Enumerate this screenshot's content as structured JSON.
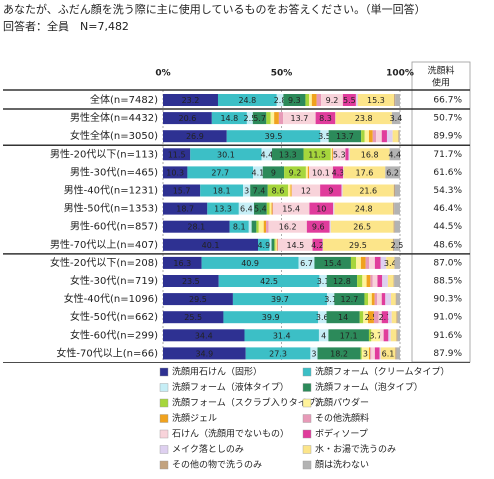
{
  "chart_data": {
    "type": "stacked_bar_horizontal",
    "title": "あなたが、ふだん顔を洗う際に主に使用しているものをお答えください。（単一回答）",
    "subtitle": "回答者：全員　N=7,482",
    "categories": [
      "全体(n=7482)",
      "男性全体(n=4432)",
      "女性全体(n=3050)",
      "男性-20代以下(n=113)",
      "男性-30代(n=465)",
      "男性-40代(n=1231)",
      "男性-50代(n=1353)",
      "男性-60代(n=857)",
      "男性-70代以上(n=407)",
      "女性-20代以下(n=208)",
      "女性-30代(n=719)",
      "女性-40代(n=1096)",
      "女性-50代(n=662)",
      "女性-60代(n=299)",
      "女性-70代以上(n=66)"
    ],
    "xlim": [
      0,
      100
    ],
    "xticks": [
      {
        "value": 0,
        "label": "0%"
      },
      {
        "value": 50,
        "label": "50%"
      },
      {
        "value": 100,
        "label": "100%"
      }
    ],
    "grid": true,
    "series": [
      {
        "name": "洗顔用石けん（固形）",
        "color": "#2e3192",
        "values": [
          23.2,
          20.6,
          26.9,
          11.5,
          10.3,
          15.7,
          18.7,
          28.1,
          40.1,
          16.3,
          23.5,
          29.5,
          25.5,
          34.4,
          34.9
        ]
      },
      {
        "name": "洗顔フォーム（クリームタイプ）",
        "color": "#3cbfc6",
        "values": [
          24.8,
          14.8,
          39.5,
          30.1,
          27.7,
          18.1,
          13.3,
          8.1,
          4.9,
          40.9,
          42.5,
          39.7,
          39.9,
          31.4,
          27.3
        ]
      },
      {
        "name": "洗顔フォーム（液体タイプ）",
        "color": "#c6eef6",
        "values": [
          2.8,
          2.5,
          3.5,
          4.4,
          4.1,
          3.0,
          6.4,
          1.2,
          0.8,
          6.7,
          3.1,
          3.1,
          3.6,
          4.0,
          3.0
        ]
      },
      {
        "name": "洗顔フォーム（泡タイプ）",
        "color": "#2c8a5a",
        "values": [
          9.3,
          5.7,
          13.7,
          13.3,
          9.0,
          7.4,
          5.4,
          2.0,
          1.2,
          15.4,
          12.8,
          12.7,
          14.0,
          17.1,
          18.2
        ]
      },
      {
        "name": "洗顔フォーム（スクラブ入りタイプ）",
        "color": "#a6d63c",
        "values": [
          1.5,
          1.8,
          1.5,
          11.5,
          9.2,
          8.6,
          1.2,
          1.0,
          0.5,
          2.2,
          2.2,
          1.5,
          1.5,
          1.0,
          0.5
        ]
      },
      {
        "name": "洗顔パウダー",
        "color": "#fff39a",
        "values": [
          1.2,
          1.5,
          1.8,
          0.5,
          0.8,
          1.0,
          0.8,
          2.1,
          0.5,
          2.0,
          1.8,
          1.6,
          2.0,
          3.7,
          3.0
        ]
      },
      {
        "name": "洗顔ジェル",
        "color": "#f0a21e",
        "values": [
          2.0,
          2.0,
          1.6,
          0.4,
          0.5,
          0.5,
          0.4,
          1.0,
          0.3,
          2.0,
          1.6,
          1.2,
          2.5,
          0,
          0.5
        ]
      },
      {
        "name": "その他洗顔料",
        "color": "#e79ab8",
        "values": [
          1.9,
          1.8,
          1.4,
          0,
          0,
          0,
          0.2,
          1.0,
          0.3,
          1.5,
          1.0,
          1.0,
          2.0,
          0,
          0.5
        ]
      },
      {
        "name": "石けん（洗顔用でないもの）",
        "color": "#f8d3da",
        "values": [
          9.2,
          13.7,
          2.4,
          5.3,
          10.1,
          12.0,
          15.4,
          16.2,
          14.5,
          2.4,
          2.0,
          2.0,
          1.3,
          1.5,
          1.5
        ]
      },
      {
        "name": "ボディソープ",
        "color": "#e03c9c",
        "values": [
          5.5,
          8.3,
          2.2,
          1.3,
          4.3,
          9.0,
          10.0,
          9.6,
          4.2,
          2.4,
          2.0,
          1.5,
          2.7,
          2.0,
          2.0
        ]
      },
      {
        "name": "メイク落としのみ",
        "color": "#ded0f0",
        "values": [
          0.8,
          0.1,
          2.4,
          0.5,
          0.2,
          0.5,
          0.5,
          0.5,
          0.2,
          2.4,
          2.4,
          2.4,
          1.5,
          1.0,
          0.5
        ]
      },
      {
        "name": "水・お湯で洗うのみ",
        "color": "#fce58a",
        "values": [
          15.3,
          23.8,
          2.4,
          16.8,
          17.6,
          21.6,
          24.8,
          26.5,
          29.5,
          3.4,
          2.4,
          2.0,
          2.0,
          2.4,
          6.1
        ]
      },
      {
        "name": "その他の物で洗うのみ",
        "color": "#c2a27e",
        "values": [
          0.5,
          0,
          0.4,
          0,
          0,
          0.5,
          0.5,
          0.5,
          0.5,
          0.2,
          0.3,
          0.3,
          0.5,
          0.5,
          0.5
        ]
      },
      {
        "name": "顔は洗わない",
        "color": "#b3b3b3",
        "values": [
          2.0,
          3.4,
          0.3,
          4.4,
          6.2,
          2.1,
          2.4,
          2.2,
          2.5,
          2.2,
          2.4,
          1.5,
          1.0,
          1.0,
          1.5
        ]
      }
    ],
    "usage_header": [
      "洗顔料",
      "使用"
    ],
    "usage": [
      "66.7%",
      "50.7%",
      "89.9%",
      "71.7%",
      "61.6%",
      "54.3%",
      "46.4%",
      "44.5%",
      "48.6%",
      "87.0%",
      "88.5%",
      "90.3%",
      "91.0%",
      "91.6%",
      "87.9%"
    ]
  }
}
